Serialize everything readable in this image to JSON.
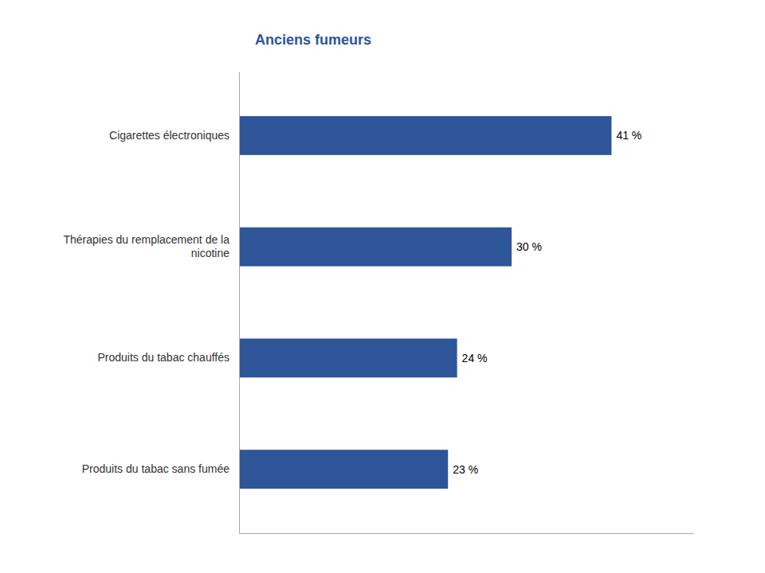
{
  "chart_data": {
    "type": "bar",
    "orientation": "horizontal",
    "title": "Anciens fumeurs",
    "categories": [
      "Produits du tabac sans fumée",
      "Produits du tabac chauffés",
      "Thérapies du remplacement de la\nnicotine",
      "Cigarettes électroniques"
    ],
    "values": [
      23,
      24,
      30,
      41
    ],
    "value_labels": [
      "23 %",
      "24 %",
      "30 %",
      "41 %"
    ],
    "data_labels": true,
    "color": "#2E5597",
    "xlim": [
      0,
      50
    ],
    "tick_labels": "y",
    "grid": false
  }
}
